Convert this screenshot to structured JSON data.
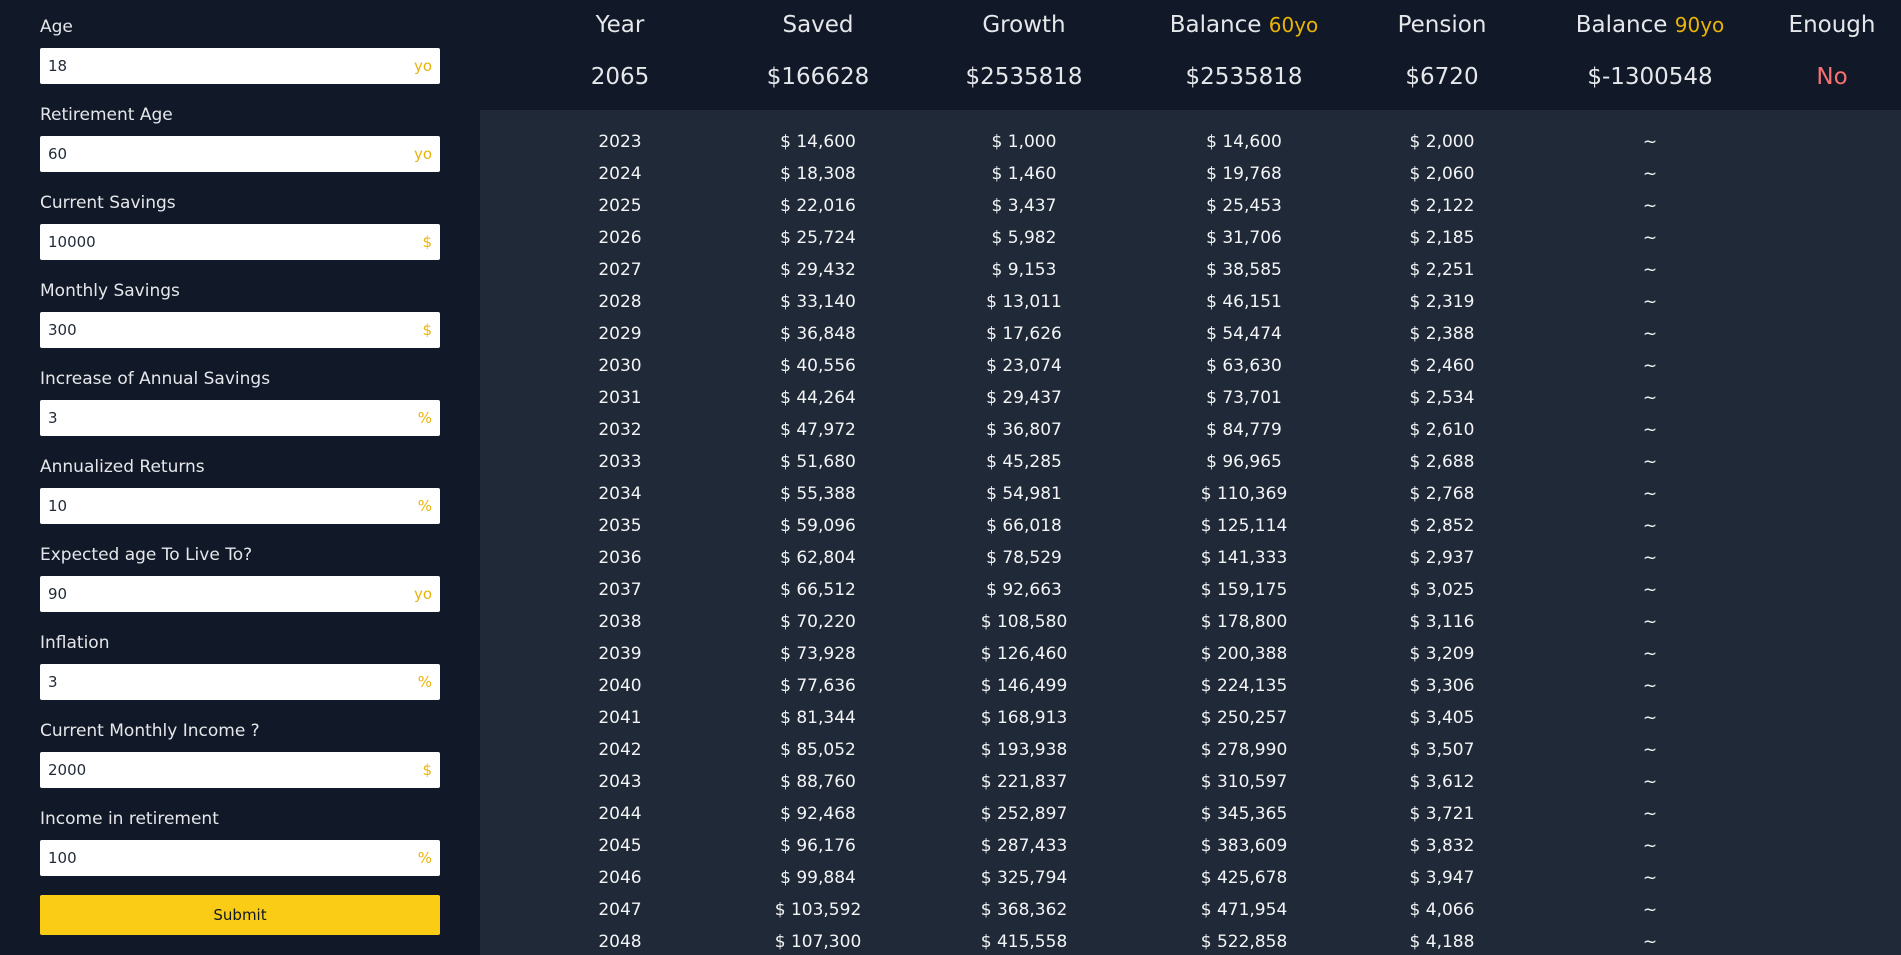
{
  "form": {
    "fields": [
      {
        "label": "Age",
        "value": "18",
        "unit": "yo"
      },
      {
        "label": "Retirement Age",
        "value": "60",
        "unit": "yo"
      },
      {
        "label": "Current Savings",
        "value": "10000",
        "unit": "$"
      },
      {
        "label": "Monthly Savings",
        "value": "300",
        "unit": "$"
      },
      {
        "label": "Increase of Annual Savings",
        "value": "3",
        "unit": "%"
      },
      {
        "label": "Annualized Returns",
        "value": "10",
        "unit": "%"
      },
      {
        "label": "Expected age To Live To?",
        "value": "90",
        "unit": "yo"
      },
      {
        "label": "Inflation",
        "value": "3",
        "unit": "%"
      },
      {
        "label": "Current Monthly Income ?",
        "value": "2000",
        "unit": "$"
      },
      {
        "label": "Income in retirement",
        "value": "100",
        "unit": "%"
      }
    ],
    "submit_label": "Submit"
  },
  "summary": {
    "headers": {
      "year": "Year",
      "saved": "Saved",
      "growth": "Growth",
      "balance60": "Balance",
      "balance60_suffix": "60yo",
      "pension": "Pension",
      "balance90": "Balance",
      "balance90_suffix": "90yo",
      "enough": "Enough"
    },
    "values": {
      "year": "2065",
      "saved": "$166628",
      "growth": "$2535818",
      "balance60": "$2535818",
      "pension": "$6720",
      "balance90": "$-1300548",
      "enough": "No"
    },
    "colors": {
      "accent": "#eab308",
      "negative": "#f87171"
    }
  },
  "table": {
    "rows": [
      {
        "year": "2023",
        "saved": "$ 14,600",
        "growth": "$ 1,000",
        "balance": "$ 14,600",
        "pension": "$ 2,000",
        "balance90": "~"
      },
      {
        "year": "2024",
        "saved": "$ 18,308",
        "growth": "$ 1,460",
        "balance": "$ 19,768",
        "pension": "$ 2,060",
        "balance90": "~"
      },
      {
        "year": "2025",
        "saved": "$ 22,016",
        "growth": "$ 3,437",
        "balance": "$ 25,453",
        "pension": "$ 2,122",
        "balance90": "~"
      },
      {
        "year": "2026",
        "saved": "$ 25,724",
        "growth": "$ 5,982",
        "balance": "$ 31,706",
        "pension": "$ 2,185",
        "balance90": "~"
      },
      {
        "year": "2027",
        "saved": "$ 29,432",
        "growth": "$ 9,153",
        "balance": "$ 38,585",
        "pension": "$ 2,251",
        "balance90": "~"
      },
      {
        "year": "2028",
        "saved": "$ 33,140",
        "growth": "$ 13,011",
        "balance": "$ 46,151",
        "pension": "$ 2,319",
        "balance90": "~"
      },
      {
        "year": "2029",
        "saved": "$ 36,848",
        "growth": "$ 17,626",
        "balance": "$ 54,474",
        "pension": "$ 2,388",
        "balance90": "~"
      },
      {
        "year": "2030",
        "saved": "$ 40,556",
        "growth": "$ 23,074",
        "balance": "$ 63,630",
        "pension": "$ 2,460",
        "balance90": "~"
      },
      {
        "year": "2031",
        "saved": "$ 44,264",
        "growth": "$ 29,437",
        "balance": "$ 73,701",
        "pension": "$ 2,534",
        "balance90": "~"
      },
      {
        "year": "2032",
        "saved": "$ 47,972",
        "growth": "$ 36,807",
        "balance": "$ 84,779",
        "pension": "$ 2,610",
        "balance90": "~"
      },
      {
        "year": "2033",
        "saved": "$ 51,680",
        "growth": "$ 45,285",
        "balance": "$ 96,965",
        "pension": "$ 2,688",
        "balance90": "~"
      },
      {
        "year": "2034",
        "saved": "$ 55,388",
        "growth": "$ 54,981",
        "balance": "$ 110,369",
        "pension": "$ 2,768",
        "balance90": "~"
      },
      {
        "year": "2035",
        "saved": "$ 59,096",
        "growth": "$ 66,018",
        "balance": "$ 125,114",
        "pension": "$ 2,852",
        "balance90": "~"
      },
      {
        "year": "2036",
        "saved": "$ 62,804",
        "growth": "$ 78,529",
        "balance": "$ 141,333",
        "pension": "$ 2,937",
        "balance90": "~"
      },
      {
        "year": "2037",
        "saved": "$ 66,512",
        "growth": "$ 92,663",
        "balance": "$ 159,175",
        "pension": "$ 3,025",
        "balance90": "~"
      },
      {
        "year": "2038",
        "saved": "$ 70,220",
        "growth": "$ 108,580",
        "balance": "$ 178,800",
        "pension": "$ 3,116",
        "balance90": "~"
      },
      {
        "year": "2039",
        "saved": "$ 73,928",
        "growth": "$ 126,460",
        "balance": "$ 200,388",
        "pension": "$ 3,209",
        "balance90": "~"
      },
      {
        "year": "2040",
        "saved": "$ 77,636",
        "growth": "$ 146,499",
        "balance": "$ 224,135",
        "pension": "$ 3,306",
        "balance90": "~"
      },
      {
        "year": "2041",
        "saved": "$ 81,344",
        "growth": "$ 168,913",
        "balance": "$ 250,257",
        "pension": "$ 3,405",
        "balance90": "~"
      },
      {
        "year": "2042",
        "saved": "$ 85,052",
        "growth": "$ 193,938",
        "balance": "$ 278,990",
        "pension": "$ 3,507",
        "balance90": "~"
      },
      {
        "year": "2043",
        "saved": "$ 88,760",
        "growth": "$ 221,837",
        "balance": "$ 310,597",
        "pension": "$ 3,612",
        "balance90": "~"
      },
      {
        "year": "2044",
        "saved": "$ 92,468",
        "growth": "$ 252,897",
        "balance": "$ 345,365",
        "pension": "$ 3,721",
        "balance90": "~"
      },
      {
        "year": "2045",
        "saved": "$ 96,176",
        "growth": "$ 287,433",
        "balance": "$ 383,609",
        "pension": "$ 3,832",
        "balance90": "~"
      },
      {
        "year": "2046",
        "saved": "$ 99,884",
        "growth": "$ 325,794",
        "balance": "$ 425,678",
        "pension": "$ 3,947",
        "balance90": "~"
      },
      {
        "year": "2047",
        "saved": "$ 103,592",
        "growth": "$ 368,362",
        "balance": "$ 471,954",
        "pension": "$ 4,066",
        "balance90": "~"
      },
      {
        "year": "2048",
        "saved": "$ 107,300",
        "growth": "$ 415,558",
        "balance": "$ 522,858",
        "pension": "$ 4,188",
        "balance90": "~"
      }
    ]
  }
}
